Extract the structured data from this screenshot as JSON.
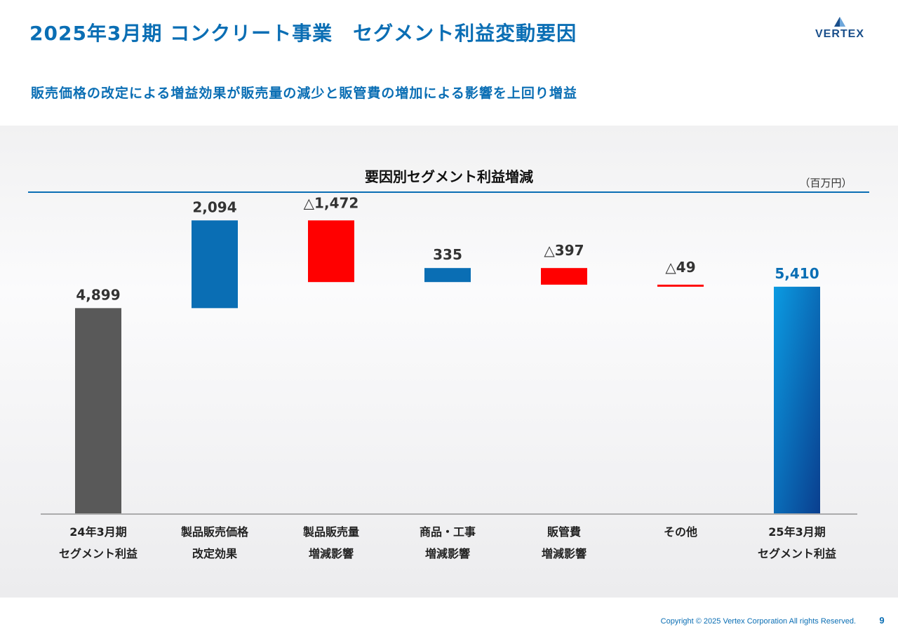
{
  "header": {
    "title": "2025年3月期 コンクリート事業　セグメント利益変動要因",
    "logo_text": "VERTEX",
    "subtitle": "販売価格の改定による増益効果が販売量の減少と販管費の増加による影響を上回り増益"
  },
  "colors": {
    "brand": "#0a6eb4",
    "increase": "#0a6eb4",
    "decrease": "#ff0000",
    "base_start": "#595959",
    "base_end_top": "#0b9be2",
    "base_end_bottom": "#0a3e8e"
  },
  "chart_data": {
    "type": "bar",
    "subtype": "waterfall",
    "title": "要因別セグメント利益増減",
    "unit": "（百万円）",
    "categories": [
      [
        "24年3月期",
        "セグメント利益"
      ],
      [
        "製品販売価格",
        "改定効果"
      ],
      [
        "製品販売量",
        "増減影響"
      ],
      [
        "商品・工事",
        "増減影響"
      ],
      [
        "販管費",
        "増減影響"
      ],
      [
        "その他",
        ""
      ],
      [
        "25年3月期",
        "セグメント利益"
      ]
    ],
    "values": [
      4899,
      2094,
      -1472,
      335,
      -397,
      -49,
      5410
    ],
    "kinds": [
      "base",
      "increase",
      "decrease",
      "increase",
      "decrease",
      "decrease",
      "base"
    ],
    "value_labels": [
      "4,899",
      "2,094",
      "△1,472",
      "335",
      "△397",
      "△49",
      "5,410"
    ],
    "ylim": [
      0,
      7600
    ],
    "grid": false,
    "legend": "none"
  },
  "footer": {
    "copyright": "Copyright © 2025 Vertex Corporation All rights Reserved.",
    "page_number": "9"
  }
}
